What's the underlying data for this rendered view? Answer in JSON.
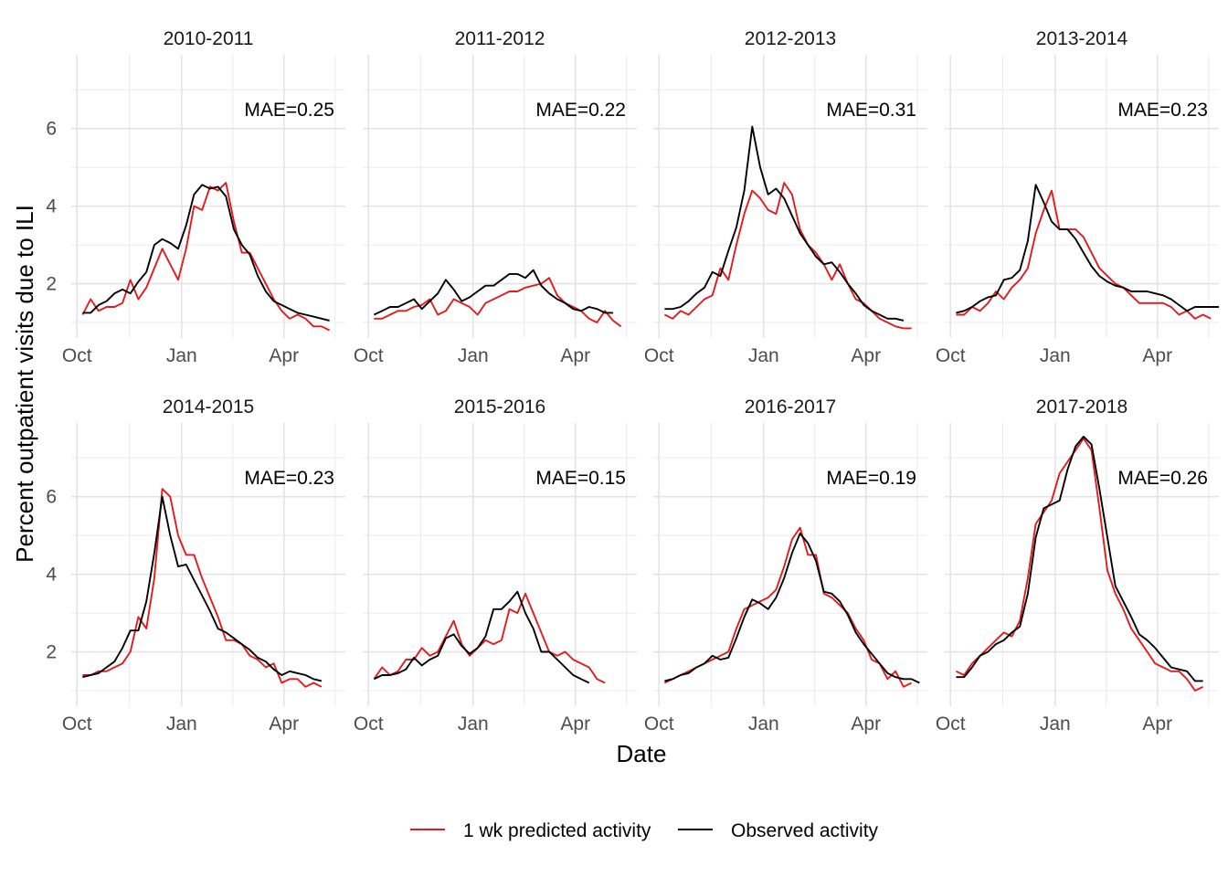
{
  "chart_data": {
    "type": "line",
    "xlabel": "Date",
    "ylabel": "Percent outpatient visits due to ILI",
    "x_ticks": [
      "Oct",
      "Jan",
      "Apr"
    ],
    "y_ticks": [
      2,
      4,
      6
    ],
    "ylim": [
      0.6,
      7.9
    ],
    "legend": {
      "position": "bottom",
      "entries": [
        {
          "name": "1 wk predicted activity",
          "color": "#e41a1c"
        },
        {
          "name": "Observed activity",
          "color": "#000000"
        }
      ]
    },
    "panels": [
      {
        "season": "2010-2011",
        "mae": "MAE=0.25",
        "observed": [
          1.25,
          1.25,
          1.45,
          1.55,
          1.75,
          1.85,
          1.75,
          2.05,
          2.3,
          3.0,
          3.15,
          3.05,
          2.9,
          3.5,
          4.3,
          4.55,
          4.45,
          4.5,
          4.25,
          3.4,
          3.0,
          2.75,
          2.2,
          1.8,
          1.55,
          1.45,
          1.35,
          1.25,
          1.2,
          1.15,
          1.1,
          1.05
        ],
        "predicted": [
          1.2,
          1.6,
          1.3,
          1.4,
          1.4,
          1.5,
          2.1,
          1.6,
          1.9,
          2.4,
          2.9,
          2.5,
          2.1,
          2.9,
          4.0,
          3.9,
          4.5,
          4.4,
          4.6,
          3.6,
          2.8,
          2.8,
          2.4,
          2.0,
          1.6,
          1.3,
          1.1,
          1.2,
          1.1,
          0.9,
          0.9,
          0.8
        ]
      },
      {
        "season": "2011-2012",
        "mae": "MAE=0.22",
        "observed": [
          1.2,
          1.3,
          1.4,
          1.4,
          1.5,
          1.6,
          1.35,
          1.55,
          1.75,
          2.1,
          1.85,
          1.55,
          1.65,
          1.8,
          1.95,
          1.95,
          2.1,
          2.25,
          2.25,
          2.15,
          2.35,
          1.95,
          1.75,
          1.6,
          1.5,
          1.35,
          1.3,
          1.4,
          1.35,
          1.25,
          1.25
        ],
        "predicted": [
          1.1,
          1.1,
          1.2,
          1.3,
          1.3,
          1.4,
          1.45,
          1.6,
          1.2,
          1.3,
          1.6,
          1.5,
          1.4,
          1.2,
          1.5,
          1.6,
          1.7,
          1.8,
          1.8,
          1.9,
          1.95,
          2.0,
          2.15,
          1.7,
          1.5,
          1.4,
          1.3,
          1.1,
          1.0,
          1.3,
          1.05,
          0.9
        ]
      },
      {
        "season": "2012-2013",
        "mae": "MAE=0.31",
        "observed": [
          1.35,
          1.35,
          1.4,
          1.55,
          1.75,
          1.9,
          2.3,
          2.2,
          2.85,
          3.45,
          4.4,
          6.05,
          5.0,
          4.3,
          4.45,
          4.2,
          3.75,
          3.3,
          3.0,
          2.7,
          2.5,
          2.55,
          2.3,
          2.0,
          1.75,
          1.45,
          1.3,
          1.2,
          1.1,
          1.1,
          1.05
        ],
        "predicted": [
          1.2,
          1.1,
          1.3,
          1.2,
          1.4,
          1.6,
          1.7,
          2.4,
          2.1,
          3.0,
          3.8,
          4.4,
          4.2,
          3.9,
          3.8,
          4.6,
          4.3,
          3.4,
          3.0,
          2.8,
          2.5,
          2.1,
          2.5,
          2.0,
          1.6,
          1.5,
          1.3,
          1.1,
          1.0,
          0.9,
          0.85,
          0.85
        ]
      },
      {
        "season": "2013-2014",
        "mae": "MAE=0.23",
        "observed": [
          1.25,
          1.3,
          1.4,
          1.55,
          1.65,
          1.7,
          2.1,
          2.15,
          2.35,
          3.1,
          4.55,
          4.1,
          3.6,
          3.4,
          3.4,
          3.15,
          2.8,
          2.45,
          2.2,
          2.05,
          1.95,
          1.9,
          1.8,
          1.8,
          1.8,
          1.75,
          1.7,
          1.6,
          1.45,
          1.3,
          1.4,
          1.4,
          1.4,
          1.4
        ],
        "predicted": [
          1.2,
          1.2,
          1.4,
          1.3,
          1.5,
          1.8,
          1.6,
          1.9,
          2.1,
          2.4,
          3.3,
          3.9,
          4.4,
          3.4,
          3.4,
          3.4,
          3.2,
          2.8,
          2.4,
          2.2,
          2.0,
          1.9,
          1.7,
          1.5,
          1.5,
          1.5,
          1.5,
          1.4,
          1.2,
          1.3,
          1.1,
          1.2,
          1.1
        ]
      },
      {
        "season": "2014-2015",
        "mae": "MAE=0.23",
        "observed": [
          1.35,
          1.4,
          1.45,
          1.6,
          1.75,
          2.1,
          2.55,
          2.55,
          3.3,
          4.55,
          6.0,
          5.0,
          4.2,
          4.25,
          3.85,
          3.45,
          3.05,
          2.6,
          2.5,
          2.35,
          2.2,
          2.05,
          1.85,
          1.75,
          1.55,
          1.4,
          1.5,
          1.45,
          1.4,
          1.3,
          1.25
        ],
        "predicted": [
          1.4,
          1.4,
          1.5,
          1.5,
          1.6,
          1.7,
          2.0,
          2.9,
          2.6,
          3.9,
          6.2,
          6.0,
          5.0,
          4.5,
          4.5,
          3.9,
          3.4,
          2.9,
          2.3,
          2.3,
          2.2,
          1.9,
          1.8,
          1.6,
          1.7,
          1.2,
          1.3,
          1.3,
          1.1,
          1.2,
          1.1
        ]
      },
      {
        "season": "2015-2016",
        "mae": "MAE=0.15",
        "observed": [
          1.3,
          1.4,
          1.4,
          1.45,
          1.55,
          1.85,
          1.65,
          1.8,
          1.9,
          2.35,
          2.45,
          2.15,
          1.95,
          2.1,
          2.4,
          3.1,
          3.1,
          3.3,
          3.55,
          3.0,
          2.6,
          2.0,
          2.0,
          1.8,
          1.6,
          1.4,
          1.3,
          1.2
        ],
        "predicted": [
          1.3,
          1.6,
          1.4,
          1.5,
          1.8,
          1.8,
          2.1,
          1.9,
          2.0,
          2.4,
          2.8,
          2.2,
          1.9,
          2.1,
          2.3,
          2.2,
          2.3,
          3.1,
          3.0,
          3.5,
          3.0,
          2.5,
          2.0,
          1.9,
          2.0,
          1.8,
          1.7,
          1.6,
          1.3,
          1.2
        ]
      },
      {
        "season": "2016-2017",
        "mae": "MAE=0.19",
        "observed": [
          1.25,
          1.3,
          1.4,
          1.45,
          1.6,
          1.7,
          1.9,
          1.8,
          1.85,
          2.35,
          2.9,
          3.35,
          3.25,
          3.1,
          3.4,
          3.9,
          4.55,
          5.05,
          4.8,
          4.35,
          3.55,
          3.5,
          3.3,
          2.95,
          2.5,
          2.2,
          1.95,
          1.7,
          1.45,
          1.35,
          1.3,
          1.3,
          1.2
        ],
        "predicted": [
          1.2,
          1.3,
          1.4,
          1.5,
          1.6,
          1.7,
          1.8,
          1.9,
          2.0,
          2.6,
          3.1,
          3.2,
          3.3,
          3.4,
          3.6,
          4.2,
          4.9,
          5.2,
          4.5,
          4.5,
          3.5,
          3.4,
          3.2,
          3.0,
          2.6,
          2.3,
          1.8,
          1.7,
          1.3,
          1.5,
          1.1,
          1.2
        ]
      },
      {
        "season": "2017-2018",
        "mae": "MAE=0.26",
        "observed": [
          1.35,
          1.35,
          1.6,
          1.9,
          2.0,
          2.2,
          2.3,
          2.5,
          2.65,
          3.5,
          4.95,
          5.7,
          5.8,
          5.9,
          6.7,
          7.3,
          7.55,
          7.35,
          6.2,
          4.95,
          3.7,
          3.3,
          2.9,
          2.45,
          2.3,
          2.1,
          1.85,
          1.6,
          1.55,
          1.5,
          1.25,
          1.25
        ],
        "predicted": [
          1.5,
          1.4,
          1.7,
          1.9,
          2.1,
          2.3,
          2.5,
          2.4,
          2.8,
          3.9,
          5.3,
          5.6,
          5.9,
          6.6,
          6.9,
          7.2,
          7.5,
          7.2,
          5.7,
          4.1,
          3.5,
          3.1,
          2.6,
          2.3,
          2.0,
          1.7,
          1.6,
          1.5,
          1.5,
          1.3,
          1.0,
          1.1
        ]
      }
    ]
  }
}
